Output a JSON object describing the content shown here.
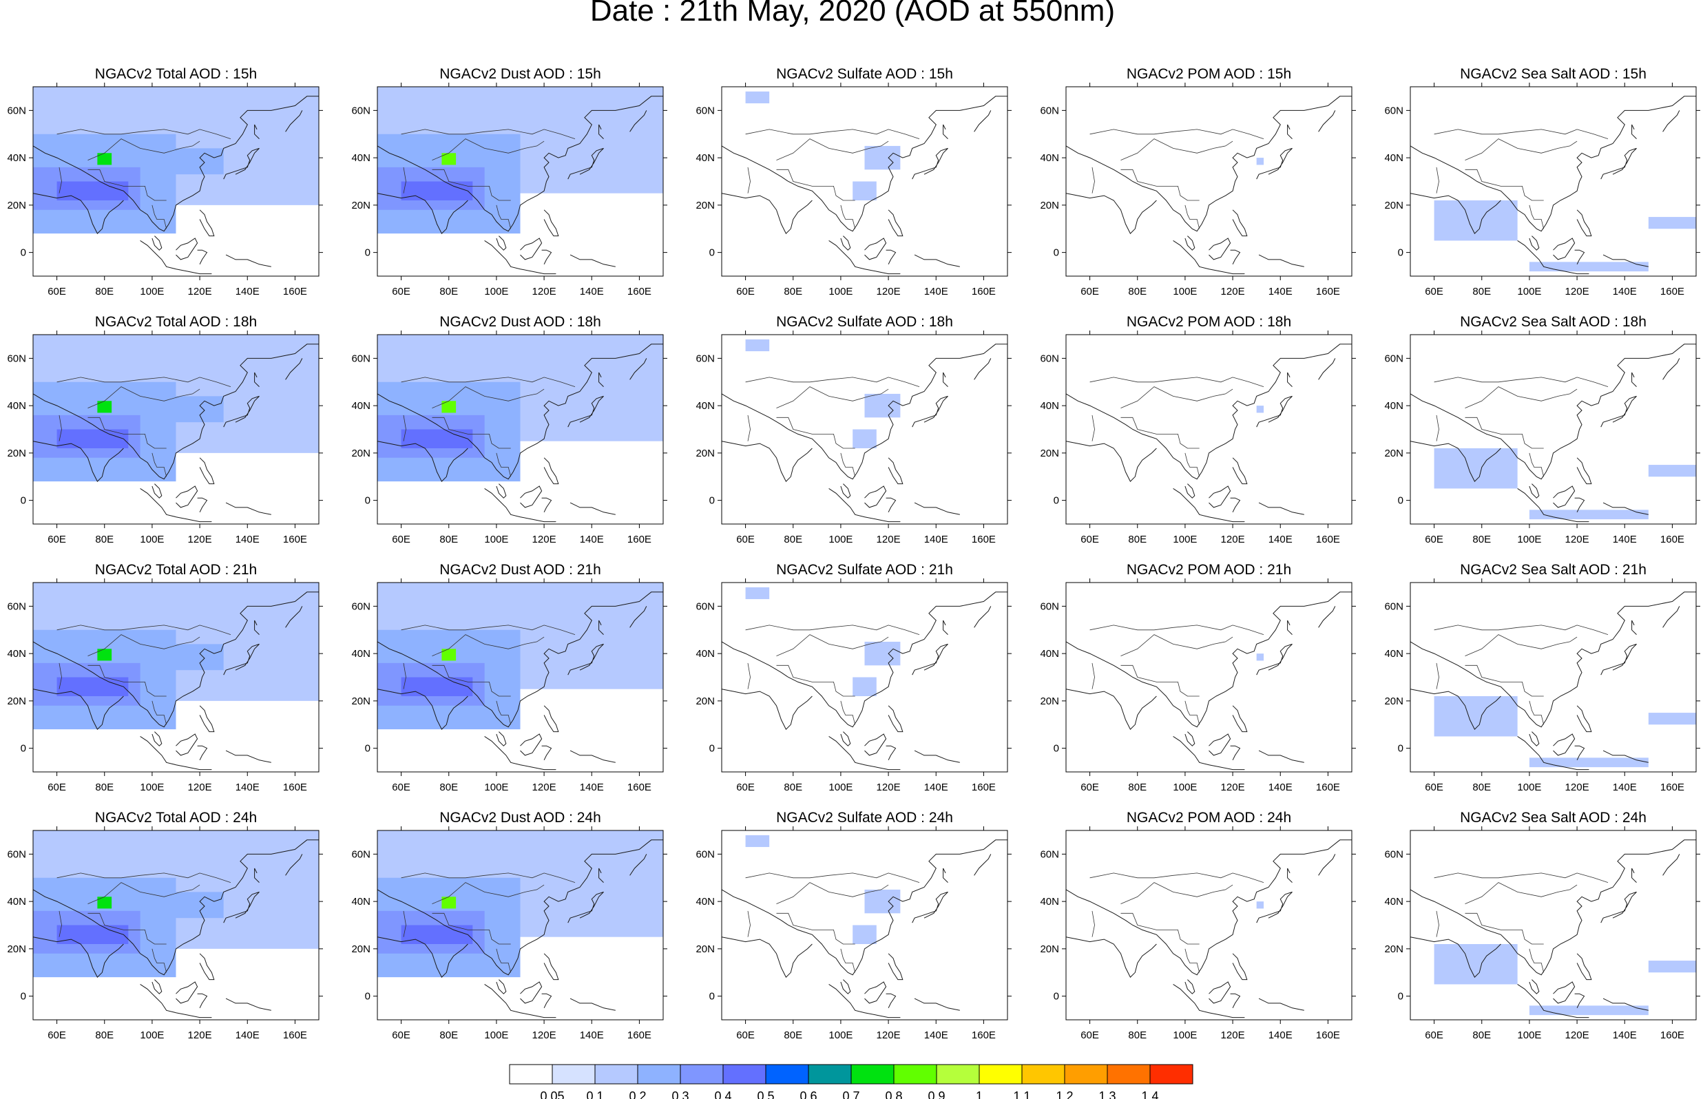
{
  "title": "Date : 21th May, 2020 (AOD at 550nm)",
  "chart_data": {
    "type": "heatmap",
    "title": "Date : 21th May, 2020 (AOD at 550nm)",
    "variables": [
      "Total",
      "Dust",
      "Sulfate",
      "POM",
      "Sea Salt"
    ],
    "hours": [
      "15h",
      "18h",
      "21h",
      "24h"
    ],
    "panel_titles": [
      [
        "NGACv2 Total AOD : 15h",
        "NGACv2 Dust AOD : 15h",
        "NGACv2 Sulfate AOD : 15h",
        "NGACv2 POM AOD : 15h",
        "NGACv2 Sea Salt AOD : 15h"
      ],
      [
        "NGACv2 Total AOD : 18h",
        "NGACv2 Dust AOD : 18h",
        "NGACv2 Sulfate AOD : 18h",
        "NGACv2 POM AOD : 18h",
        "NGACv2 Sea Salt AOD : 18h"
      ],
      [
        "NGACv2 Total AOD : 21h",
        "NGACv2 Dust AOD : 21h",
        "NGACv2 Sulfate AOD : 21h",
        "NGACv2 POM AOD : 21h",
        "NGACv2 Sea Salt AOD : 21h"
      ],
      [
        "NGACv2 Total AOD : 24h",
        "NGACv2 Dust AOD : 24h",
        "NGACv2 Sulfate AOD : 24h",
        "NGACv2 POM AOD : 24h",
        "NGACv2 Sea Salt  AOD : 24h"
      ]
    ],
    "lon_range": [
      50,
      170
    ],
    "lat_range": [
      -10,
      70
    ],
    "x_ticks": [
      60,
      80,
      100,
      120,
      140,
      160
    ],
    "x_tick_labels": [
      "60E",
      "80E",
      "100E",
      "120E",
      "140E",
      "160E"
    ],
    "y_ticks": [
      0,
      20,
      40,
      60
    ],
    "y_tick_labels": [
      "0",
      "20N",
      "40N",
      "60N"
    ],
    "colorbar": {
      "levels": [
        0.05,
        0.1,
        0.2,
        0.3,
        0.4,
        0.5,
        0.6,
        0.7,
        0.8,
        0.9,
        1,
        1.1,
        1.2,
        1.3,
        1.4
      ],
      "labels": [
        "0.05",
        "0.1",
        "0.2",
        "0.3",
        "0.4",
        "0.5",
        "0.6",
        "0.7",
        "0.8",
        "0.9",
        "1",
        "1.1",
        "1.2",
        "1.3",
        "1.4"
      ],
      "colors": [
        "#ffffff",
        "#d6e2ff",
        "#b5c9ff",
        "#8eb2ff",
        "#7f96ff",
        "#6370ff",
        "#0063ff",
        "#00969c",
        "#00e210",
        "#61ff00",
        "#b5ff3b",
        "#ffff00",
        "#ffc600",
        "#ff9e00",
        "#ff7200",
        "#ff2e00"
      ]
    },
    "regions": {
      "total": [
        {
          "lon": [
            50,
            170
          ],
          "lat": [
            20,
            70
          ],
          "aod": 0.1
        },
        {
          "lon": [
            50,
            110
          ],
          "lat": [
            8,
            50
          ],
          "aod": 0.2
        },
        {
          "lon": [
            50,
            95
          ],
          "lat": [
            18,
            36
          ],
          "aod": 0.3
        },
        {
          "lon": [
            60,
            90
          ],
          "lat": [
            22,
            30
          ],
          "aod": 0.4
        },
        {
          "lon": [
            110,
            130
          ],
          "lat": [
            33,
            44
          ],
          "aod": 0.2
        },
        {
          "lon": [
            77,
            83
          ],
          "lat": [
            37,
            42
          ],
          "aod": 0.7
        }
      ],
      "dust": [
        {
          "lon": [
            50,
            170
          ],
          "lat": [
            25,
            70
          ],
          "aod": 0.1
        },
        {
          "lon": [
            50,
            110
          ],
          "lat": [
            8,
            50
          ],
          "aod": 0.2
        },
        {
          "lon": [
            50,
            95
          ],
          "lat": [
            18,
            36
          ],
          "aod": 0.3
        },
        {
          "lon": [
            60,
            90
          ],
          "lat": [
            22,
            30
          ],
          "aod": 0.4
        },
        {
          "lon": [
            77,
            83
          ],
          "lat": [
            37,
            42
          ],
          "aod": 0.8
        }
      ],
      "sulfate": [
        {
          "lon": [
            60,
            70
          ],
          "lat": [
            63,
            68
          ],
          "aod": 0.1
        },
        {
          "lon": [
            110,
            125
          ],
          "lat": [
            35,
            45
          ],
          "aod": 0.1
        },
        {
          "lon": [
            105,
            115
          ],
          "lat": [
            22,
            30
          ],
          "aod": 0.1
        }
      ],
      "pom": [
        {
          "lon": [
            130,
            133
          ],
          "lat": [
            37,
            40
          ],
          "aod": 0.1
        }
      ],
      "seasalt": [
        {
          "lon": [
            60,
            95
          ],
          "lat": [
            5,
            22
          ],
          "aod": 0.1
        },
        {
          "lon": [
            150,
            170
          ],
          "lat": [
            10,
            15
          ],
          "aod": 0.1
        },
        {
          "lon": [
            100,
            150
          ],
          "lat": [
            -8,
            -4
          ],
          "aod": 0.1
        }
      ]
    }
  }
}
